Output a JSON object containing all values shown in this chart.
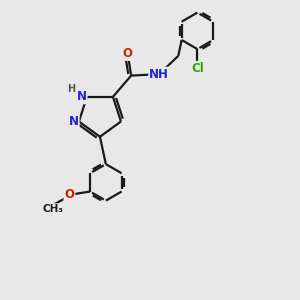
{
  "bg_color": "#e8e8e8",
  "bond_color": "#1a1a1a",
  "N_color": "#2222cc",
  "O_color": "#cc2200",
  "Cl_color": "#22aa00",
  "H_color": "#555555",
  "line_width": 1.6,
  "font_size": 8.5,
  "fig_size": [
    3.0,
    3.0
  ],
  "dpi": 100,
  "xlim": [
    0,
    10
  ],
  "ylim": [
    0,
    10
  ]
}
